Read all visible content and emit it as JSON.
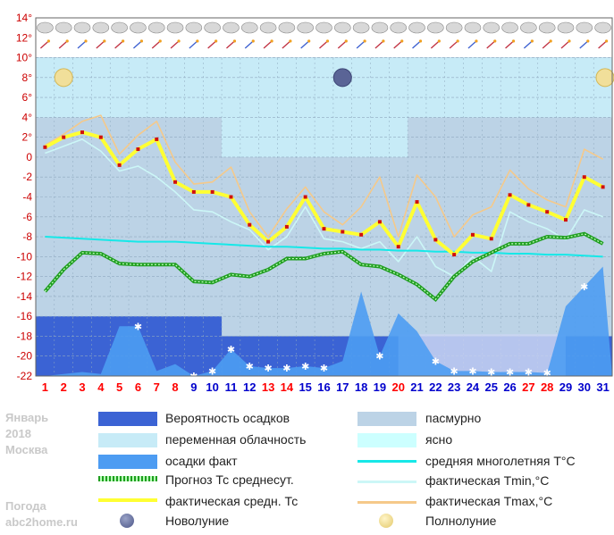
{
  "chart_data": {
    "type": "line",
    "title": "",
    "month_label": "Январь",
    "year_label": "2018",
    "city_label": "Москва",
    "site_label_1": "Погода",
    "site_label_2": "abc2home.ru",
    "xlabel": "",
    "ylabel": "",
    "ylim": [
      -22,
      14
    ],
    "yticks": [
      "14°",
      "12°",
      "10°",
      "8°",
      "6°",
      "4°",
      "2°",
      "0",
      "-2",
      "-4",
      "-6",
      "-8",
      "-10",
      "-12",
      "-14",
      "-16",
      "-18",
      "-20",
      "-22"
    ],
    "days": [
      1,
      2,
      3,
      4,
      5,
      6,
      7,
      8,
      9,
      10,
      11,
      12,
      13,
      14,
      15,
      16,
      17,
      18,
      19,
      20,
      21,
      22,
      23,
      24,
      25,
      26,
      27,
      28,
      29,
      30,
      31
    ],
    "red_days": [
      1,
      2,
      3,
      4,
      5,
      6,
      7,
      8,
      13,
      14,
      20,
      27,
      28
    ],
    "cloud_bands": [
      {
        "type": "overcast",
        "from_day": 1,
        "to_day": 10
      },
      {
        "type": "partly_cloudy",
        "from_day": 11,
        "to_day": 20
      },
      {
        "type": "overcast",
        "from_day": 21,
        "to_day": 31
      }
    ],
    "moon": {
      "full_moon_days": [
        2,
        31
      ],
      "new_moon_days": [
        17
      ]
    },
    "series": [
      {
        "name": "фактическая средн. Тс",
        "color": "#ffff33",
        "values": [
          1.0,
          2.0,
          2.5,
          2.0,
          -0.8,
          0.8,
          1.8,
          -2.5,
          -3.5,
          -3.5,
          -4.0,
          -6.8,
          -8.5,
          -7.0,
          -4.0,
          -7.2,
          -7.5,
          -7.8,
          -6.5,
          -9.0,
          -4.5,
          -8.3,
          -9.8,
          -7.8,
          -8.2,
          -3.8,
          -4.8,
          -5.5,
          -6.3,
          -2.0,
          -3.0
        ]
      },
      {
        "name": "фактическая Tmax,°C",
        "color": "#f5c98a",
        "values": [
          1.2,
          2.3,
          3.6,
          4.2,
          0.3,
          2.2,
          3.6,
          -0.5,
          -2.7,
          -2.5,
          -1.0,
          -5.5,
          -8.0,
          -5.2,
          -3.0,
          -5.5,
          -6.8,
          -5.0,
          -2.0,
          -8.0,
          -1.8,
          -4.0,
          -8.0,
          -5.8,
          -5.0,
          -1.3,
          -3.2,
          -4.3,
          -5.0,
          0.8,
          -0.2
        ]
      },
      {
        "name": "фактическая Tmin,°C",
        "color": "#ccf7f7",
        "values": [
          0.4,
          1.1,
          1.8,
          0.6,
          -1.4,
          -0.9,
          -2.0,
          -3.5,
          -5.3,
          -5.5,
          -6.5,
          -7.3,
          -9.3,
          -8.0,
          -5.0,
          -8.2,
          -8.5,
          -9.2,
          -8.5,
          -10.5,
          -8.0,
          -11.0,
          -12.0,
          -10.0,
          -11.5,
          -5.5,
          -6.5,
          -7.2,
          -8.3,
          -5.3,
          -6.0
        ]
      },
      {
        "name": "средняя многолетняя T°C",
        "color": "#16e8e8",
        "values": [
          -8.0,
          -8.1,
          -8.2,
          -8.3,
          -8.4,
          -8.5,
          -8.5,
          -8.5,
          -8.6,
          -8.7,
          -8.8,
          -8.9,
          -9.0,
          -9.0,
          -9.1,
          -9.2,
          -9.2,
          -9.3,
          -9.3,
          -9.4,
          -9.4,
          -9.5,
          -9.5,
          -9.6,
          -9.6,
          -9.7,
          -9.7,
          -9.8,
          -9.8,
          -9.9,
          -10.0
        ]
      },
      {
        "name": "Прогноз Тс среднесут.",
        "color": "#1f9e1f",
        "values": [
          -13.5,
          -11.3,
          -9.6,
          -9.7,
          -10.7,
          -10.8,
          -10.8,
          -10.8,
          -12.5,
          -12.6,
          -11.8,
          -12.0,
          -11.3,
          -10.2,
          -10.2,
          -9.7,
          -9.5,
          -10.8,
          -11.0,
          -11.8,
          -12.8,
          -14.3,
          -12.0,
          -10.5,
          -9.6,
          -8.7,
          -8.7,
          -8.0,
          -8.1,
          -7.7,
          -8.7
        ]
      }
    ],
    "precip_probability": [
      {
        "from_day": 1,
        "to_day": 10,
        "level": -16
      },
      {
        "from_day": 11,
        "to_day": 31,
        "level": -18
      }
    ],
    "precip_fact": [
      -22,
      -21.8,
      -21.6,
      -21.8,
      -17,
      -17,
      -21.5,
      -20.8,
      -22,
      -21.5,
      -19.3,
      -21,
      -21.2,
      -21.2,
      -21.0,
      -21.2,
      -20.5,
      -13.5,
      -20,
      -15.7,
      -17.5,
      -20.5,
      -21.5,
      -21.5,
      -21.6,
      -21.6,
      -21.6,
      -21.7,
      -15.0,
      -13.0,
      -11.0
    ],
    "snow_days": [
      6,
      9,
      10,
      11,
      12,
      13,
      14,
      15,
      16,
      19,
      22,
      23,
      24,
      25,
      26,
      27,
      28,
      30
    ]
  },
  "legend": {
    "precip_probability": "Вероятность осадков",
    "overcast": "пасмурно",
    "partly_cloudy": "переменная облачность",
    "clear": "ясно",
    "precip_fact": "осадки факт",
    "avg_longterm": "средняя многолетняя T°C",
    "forecast": "Прогноз Тс среднесут.",
    "tmin": "фактическая Tmin,°C",
    "tavg": "фактическая средн. Тс",
    "tmax": "фактическая Tmax,°C",
    "new_moon": "Новолуние",
    "full_moon": "Полнолуние"
  },
  "colors": {
    "overcast": "#bcd3e6",
    "partly_cloudy": "#c7ebf7",
    "clear": "#ccffff",
    "precip_probability": "#3b63d4",
    "precip_fact": "#4d9cf2",
    "axis_label_red": "#ff0000",
    "axis_label_blue": "#0000cc"
  }
}
